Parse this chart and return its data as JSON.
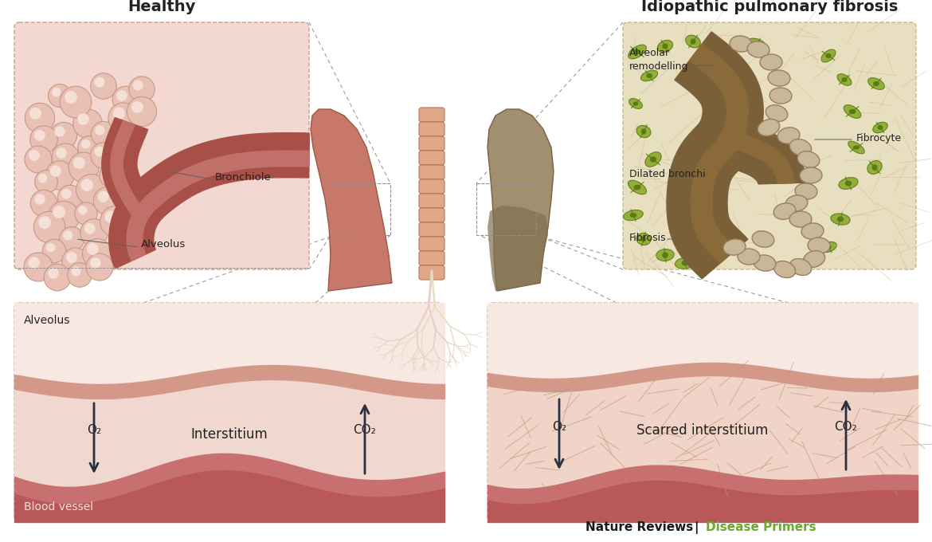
{
  "bg_color": "#ffffff",
  "title_healthy": "Healthy",
  "title_ipf": "Idiopathic pulmonary fibrosis",
  "label_bronchiole": "Bronchiole",
  "label_alveolus_top": "Alveolus",
  "label_alveolar_remodelling": "Alveolar\nremodelling",
  "label_fibrocyte": "Fibrocyte",
  "label_dilated_bronchi": "Dilated bronchi",
  "label_fibrosis": "Fibrosis",
  "label_alveolus_bottom": "Alveolus",
  "label_blood_vessel": "Blood vessel",
  "label_interstitium": "Interstitium",
  "label_o2_left": "O₂",
  "label_co2_left": "CO₂",
  "label_scarred": "Scarred interstitium",
  "label_o2_right": "O₂",
  "label_co2_right": "CO₂",
  "footer_black": "Nature Reviews",
  "footer_green": "Disease Primers",
  "footer_green_color": "#6aaa2a",
  "box_healthy_bg": "#f2d8d0",
  "box_healthy_border": "#c8a090",
  "box_ipf_bg": "#e8dfc0",
  "box_ipf_border": "#c8b888",
  "alveolus_fill": "#e8c0b4",
  "alveolus_edge": "#c89888",
  "alveolus_highlight": "#f5e0d8",
  "bronchiole_dark": "#a85048",
  "bronchiole_mid": "#c07068",
  "lung_left_color": "#c87868",
  "lung_right_color": "#a09070",
  "lung_right_dark": "#807050",
  "trachea_color": "#d09080",
  "trachea_edge": "#b07060",
  "ipf_brown": "#7a6038",
  "ipf_tan": "#c8b080",
  "ipf_green_cell": "#8aaa28",
  "ipf_green_dark": "#5a7a18",
  "fib_fill": "#c8b898",
  "fib_edge": "#988060",
  "blood_vessel_top": "#c87070",
  "blood_vessel_fill": "#b85858",
  "interstitium_fill": "#f0d8d0",
  "alv_wall_color": "#d49888",
  "scar_color": "#c09878",
  "arrow_color": "#2a3040",
  "dashed_color": "#909090",
  "line_color": "#606060"
}
